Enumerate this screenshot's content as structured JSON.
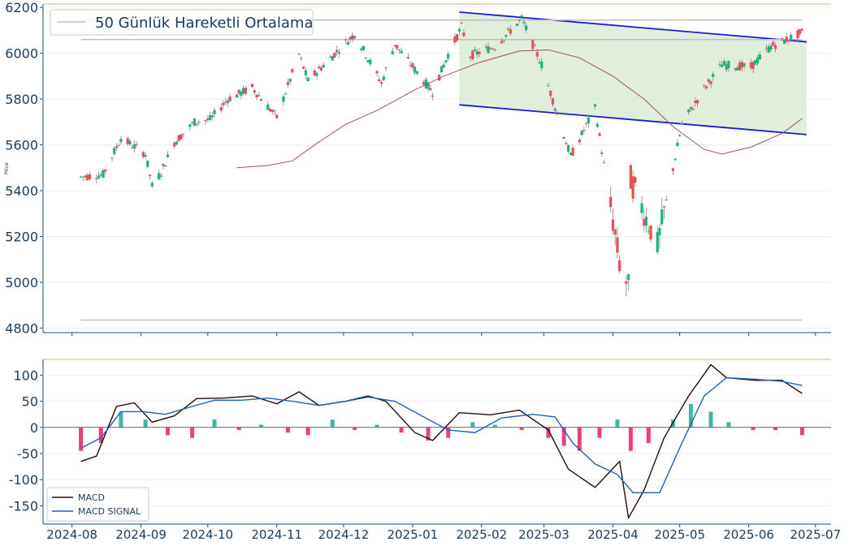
{
  "colors": {
    "up": "#1bb37a",
    "down": "#e84f55",
    "ma": "#a0525e",
    "channel": "#1a1adb",
    "channel_fill": "#d9ead3",
    "macd": "#2b0a0a",
    "signal": "#1f5fbf",
    "hist_pos": "#26a69a",
    "hist_neg": "#e91e63",
    "axis": "#1a4f72",
    "hline": "#bfbfbf",
    "top_border": "#c8b98a"
  },
  "chart_data": [
    {
      "type": "candlestick",
      "ylabel": "Price",
      "ylim": [
        4780,
        6215
      ],
      "yticks": [
        4800,
        5000,
        5200,
        5400,
        5600,
        5800,
        6000,
        6200
      ],
      "legend": {
        "label": "50 Günlük Hareketli Ortalama",
        "position": "top-left"
      },
      "horizontal_lines": [
        6145,
        6060,
        4835
      ],
      "channel": {
        "upper": {
          "start": [
            "2025-01-22",
            6180
          ],
          "end": [
            "2025-06-27",
            6050
          ]
        },
        "lower": {
          "start": [
            "2025-01-22",
            5775
          ],
          "end": [
            "2025-06-27",
            5645
          ]
        }
      },
      "moving_average_50": {
        "dates": [
          "2024-10-14",
          "2024-10-28",
          "2024-11-08",
          "2024-11-18",
          "2024-12-02",
          "2024-12-16",
          "2025-01-02",
          "2025-01-15",
          "2025-01-31",
          "2025-02-18",
          "2025-03-03",
          "2025-03-17",
          "2025-04-01",
          "2025-04-15",
          "2025-04-28",
          "2025-05-12",
          "2025-05-20",
          "2025-06-02",
          "2025-06-16",
          "2025-06-25"
        ],
        "values": [
          5500,
          5510,
          5530,
          5600,
          5690,
          5750,
          5840,
          5900,
          5960,
          6010,
          6015,
          5980,
          5900,
          5800,
          5680,
          5580,
          5560,
          5590,
          5650,
          5715
        ]
      },
      "candles_shown": "daily OHLC 2024-08-05 to 2025-06-25"
    },
    {
      "type": "line",
      "ylim": [
        -185,
        130
      ],
      "yticks": [
        -150,
        -100,
        -50,
        0,
        50,
        100
      ],
      "xticks": [
        "2024-08",
        "2024-09",
        "2024-10",
        "2024-11",
        "2024-12",
        "2025-01",
        "2025-02",
        "2025-03",
        "2025-04",
        "2025-05",
        "2025-06",
        "2025-07"
      ],
      "legend_position": "bottom-left",
      "series": [
        {
          "name": "MACD",
          "dates": [
            "2024-08-05",
            "2024-08-12",
            "2024-08-21",
            "2024-08-29",
            "2024-09-06",
            "2024-09-16",
            "2024-09-26",
            "2024-10-08",
            "2024-10-21",
            "2024-11-01",
            "2024-11-11",
            "2024-11-20",
            "2024-12-02",
            "2024-12-12",
            "2024-12-20",
            "2025-01-02",
            "2025-01-10",
            "2025-01-22",
            "2025-02-05",
            "2025-02-18",
            "2025-03-03",
            "2025-03-12",
            "2025-03-24",
            "2025-04-04",
            "2025-04-08",
            "2025-04-15",
            "2025-04-24",
            "2025-05-05",
            "2025-05-15",
            "2025-05-22",
            "2025-06-04",
            "2025-06-16",
            "2025-06-25"
          ],
          "values": [
            -65,
            -55,
            40,
            47,
            10,
            22,
            55,
            56,
            60,
            45,
            68,
            42,
            50,
            60,
            50,
            -10,
            -25,
            28,
            24,
            33,
            -5,
            -80,
            -115,
            -65,
            -173,
            -120,
            -20,
            60,
            120,
            95,
            90,
            90,
            65
          ]
        },
        {
          "name": "MACD SIGNAL",
          "dates": [
            "2024-08-05",
            "2024-08-14",
            "2024-08-23",
            "2024-09-02",
            "2024-09-12",
            "2024-09-24",
            "2024-10-04",
            "2024-10-16",
            "2024-10-28",
            "2024-11-08",
            "2024-11-20",
            "2024-12-02",
            "2024-12-12",
            "2024-12-24",
            "2025-01-06",
            "2025-01-17",
            "2025-01-29",
            "2025-02-10",
            "2025-02-24",
            "2025-03-06",
            "2025-03-14",
            "2025-03-24",
            "2025-04-03",
            "2025-04-10",
            "2025-04-22",
            "2025-05-02",
            "2025-05-12",
            "2025-05-22",
            "2025-06-04",
            "2025-06-16",
            "2025-06-25"
          ],
          "values": [
            -40,
            -20,
            30,
            30,
            25,
            40,
            52,
            52,
            56,
            50,
            42,
            50,
            58,
            50,
            20,
            -5,
            -10,
            18,
            25,
            20,
            -30,
            -70,
            -90,
            -125,
            -125,
            -30,
            60,
            95,
            92,
            88,
            80
          ]
        }
      ],
      "histogram": {
        "dates": [
          "2024-08-05",
          "2024-08-14",
          "2024-08-23",
          "2024-09-03",
          "2024-09-13",
          "2024-09-24",
          "2024-10-04",
          "2024-10-15",
          "2024-10-25",
          "2024-11-06",
          "2024-11-15",
          "2024-11-26",
          "2024-12-06",
          "2024-12-16",
          "2024-12-27",
          "2025-01-08",
          "2025-01-17",
          "2025-01-28",
          "2025-02-07",
          "2025-02-19",
          "2025-03-03",
          "2025-03-10",
          "2025-03-17",
          "2025-03-26",
          "2025-04-03",
          "2025-04-09",
          "2025-04-17",
          "2025-04-28",
          "2025-05-06",
          "2025-05-15",
          "2025-05-23",
          "2025-06-03",
          "2025-06-13",
          "2025-06-25"
        ],
        "values": [
          -45,
          -30,
          30,
          15,
          -15,
          -20,
          15,
          -5,
          5,
          -10,
          -15,
          15,
          -5,
          5,
          -10,
          -25,
          -20,
          10,
          5,
          -5,
          -20,
          -35,
          -45,
          -20,
          15,
          -45,
          -30,
          15,
          45,
          30,
          10,
          -5,
          -5,
          -15
        ]
      }
    }
  ]
}
